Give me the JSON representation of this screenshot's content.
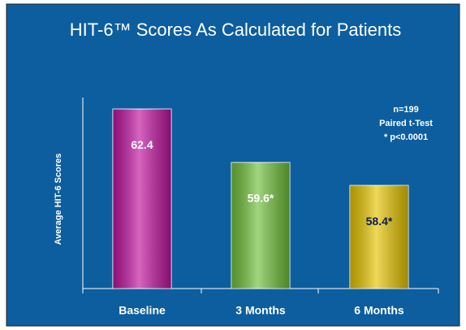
{
  "chart_data": {
    "type": "bar",
    "title": "HIT-6™ Scores As Calculated for Patients",
    "y_label": "Average HIT-6 Scores",
    "categories": [
      "Baseline",
      "3 Months",
      "6 Months"
    ],
    "values": [
      62.4,
      59.6,
      58.4
    ],
    "value_labels": [
      "62.4",
      "59.6*",
      "58.4*"
    ],
    "colors": [
      "#c0129e",
      "#6fbf3a",
      "#e6c400"
    ],
    "ylim": [
      53,
      63
    ],
    "annotations": [
      "n=199",
      "Paired t-Test",
      "* p<0.0001"
    ]
  }
}
